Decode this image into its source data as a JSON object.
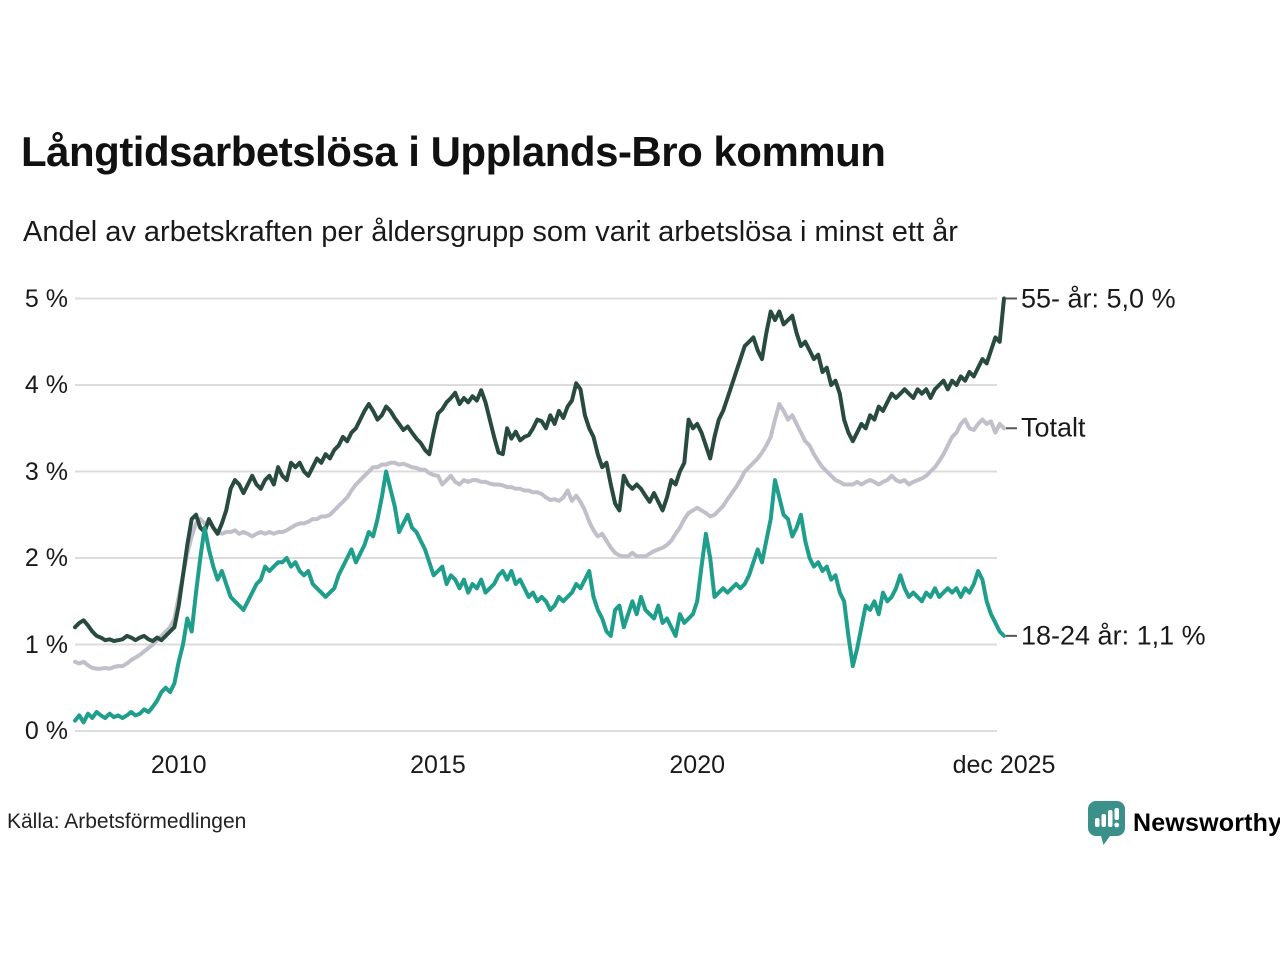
{
  "header": {
    "title": "Långtidsarbetslösa i Upplands-Bro kommun",
    "subtitle": "Andel av arbetskraften per åldersgrupp som varit arbetslösa i minst ett år"
  },
  "footer": {
    "source": "Källa: Arbetsförmedlingen",
    "brand": {
      "name": "Newsworthy",
      "icon": "newsworthy-bar-chart-pin-icon",
      "color": "#3b918a"
    }
  },
  "chart_data": {
    "type": "line",
    "frequency": "monthly",
    "x_start": "2008-01",
    "x_end": "2025-12",
    "grid": true,
    "legend_position": "right-end-labels",
    "y_axis": {
      "unit": "%",
      "min": 0,
      "max": 5,
      "ticks": [
        {
          "label": "0 %",
          "value": 0
        },
        {
          "label": "1 %",
          "value": 1
        },
        {
          "label": "2 %",
          "value": 2
        },
        {
          "label": "3 %",
          "value": 3
        },
        {
          "label": "4 %",
          "value": 4
        },
        {
          "label": "5 %",
          "value": 5
        }
      ]
    },
    "x_axis": {
      "ticks": [
        {
          "label": "2010",
          "month_index": 24
        },
        {
          "label": "2015",
          "month_index": 84
        },
        {
          "label": "2020",
          "month_index": 144
        },
        {
          "label": "dec 2025",
          "month_index": 215
        }
      ]
    },
    "series": [
      {
        "id": "totalt",
        "name": "Totalt",
        "end_label": "Totalt",
        "color": "#c1bfca",
        "last_value": 3.5,
        "values": [
          0.8,
          0.78,
          0.8,
          0.76,
          0.73,
          0.72,
          0.72,
          0.73,
          0.72,
          0.74,
          0.75,
          0.75,
          0.78,
          0.82,
          0.85,
          0.88,
          0.92,
          0.96,
          1.0,
          1.05,
          1.1,
          1.15,
          1.2,
          1.3,
          1.55,
          1.8,
          2.05,
          2.25,
          2.4,
          2.45,
          2.4,
          2.42,
          2.35,
          2.3,
          2.28,
          2.3,
          2.3,
          2.32,
          2.28,
          2.3,
          2.28,
          2.25,
          2.28,
          2.3,
          2.28,
          2.3,
          2.28,
          2.3,
          2.3,
          2.32,
          2.35,
          2.38,
          2.4,
          2.4,
          2.42,
          2.45,
          2.45,
          2.48,
          2.48,
          2.5,
          2.55,
          2.6,
          2.65,
          2.7,
          2.78,
          2.85,
          2.9,
          2.95,
          3.0,
          3.05,
          3.05,
          3.08,
          3.08,
          3.1,
          3.1,
          3.08,
          3.09,
          3.07,
          3.05,
          3.04,
          3.02,
          3.02,
          2.98,
          2.96,
          2.95,
          2.85,
          2.9,
          2.95,
          2.88,
          2.85,
          2.9,
          2.88,
          2.9,
          2.9,
          2.88,
          2.88,
          2.86,
          2.85,
          2.85,
          2.84,
          2.82,
          2.82,
          2.8,
          2.8,
          2.78,
          2.78,
          2.76,
          2.76,
          2.74,
          2.7,
          2.67,
          2.68,
          2.66,
          2.7,
          2.78,
          2.66,
          2.72,
          2.65,
          2.55,
          2.42,
          2.32,
          2.25,
          2.28,
          2.2,
          2.12,
          2.06,
          2.03,
          2.02,
          2.02,
          2.06,
          2.02,
          2.02,
          2.02,
          2.05,
          2.08,
          2.1,
          2.12,
          2.15,
          2.2,
          2.28,
          2.35,
          2.45,
          2.52,
          2.55,
          2.58,
          2.55,
          2.52,
          2.48,
          2.5,
          2.55,
          2.6,
          2.68,
          2.75,
          2.82,
          2.9,
          3.0,
          3.05,
          3.1,
          3.15,
          3.22,
          3.3,
          3.4,
          3.6,
          3.78,
          3.7,
          3.6,
          3.65,
          3.55,
          3.45,
          3.35,
          3.3,
          3.2,
          3.12,
          3.05,
          3.0,
          2.95,
          2.9,
          2.88,
          2.85,
          2.85,
          2.85,
          2.88,
          2.85,
          2.88,
          2.9,
          2.88,
          2.85,
          2.88,
          2.9,
          2.95,
          2.9,
          2.88,
          2.9,
          2.85,
          2.88,
          2.9,
          2.92,
          2.95,
          3.0,
          3.05,
          3.12,
          3.2,
          3.3,
          3.4,
          3.45,
          3.55,
          3.6,
          3.5,
          3.48,
          3.55,
          3.6,
          3.55,
          3.58,
          3.45,
          3.55,
          3.5
        ]
      },
      {
        "id": "55-plus",
        "name": "55- år",
        "end_label": "55- år: 5,0 %",
        "color": "#294b3f",
        "last_value": 5.0,
        "values": [
          1.2,
          1.25,
          1.28,
          1.22,
          1.15,
          1.1,
          1.08,
          1.05,
          1.06,
          1.04,
          1.05,
          1.06,
          1.1,
          1.08,
          1.05,
          1.08,
          1.1,
          1.06,
          1.04,
          1.08,
          1.05,
          1.1,
          1.15,
          1.2,
          1.45,
          1.8,
          2.15,
          2.45,
          2.5,
          2.35,
          2.3,
          2.45,
          2.35,
          2.28,
          2.4,
          2.55,
          2.8,
          2.9,
          2.85,
          2.75,
          2.85,
          2.95,
          2.85,
          2.8,
          2.9,
          2.95,
          2.85,
          3.05,
          2.95,
          2.9,
          3.1,
          3.05,
          3.1,
          3.0,
          2.95,
          3.05,
          3.15,
          3.1,
          3.2,
          3.15,
          3.25,
          3.3,
          3.4,
          3.35,
          3.45,
          3.5,
          3.6,
          3.7,
          3.78,
          3.7,
          3.6,
          3.65,
          3.75,
          3.7,
          3.62,
          3.55,
          3.48,
          3.52,
          3.45,
          3.38,
          3.33,
          3.25,
          3.2,
          3.45,
          3.67,
          3.72,
          3.8,
          3.85,
          3.91,
          3.78,
          3.85,
          3.8,
          3.87,
          3.82,
          3.94,
          3.8,
          3.6,
          3.4,
          3.22,
          3.2,
          3.5,
          3.38,
          3.46,
          3.36,
          3.4,
          3.42,
          3.5,
          3.6,
          3.58,
          3.5,
          3.65,
          3.55,
          3.7,
          3.62,
          3.75,
          3.82,
          4.02,
          3.95,
          3.65,
          3.5,
          3.4,
          3.2,
          3.05,
          3.1,
          2.85,
          2.63,
          2.55,
          2.95,
          2.85,
          2.8,
          2.85,
          2.8,
          2.72,
          2.65,
          2.75,
          2.65,
          2.55,
          2.7,
          2.9,
          2.85,
          3.0,
          3.1,
          3.6,
          3.5,
          3.55,
          3.45,
          3.3,
          3.15,
          3.4,
          3.6,
          3.7,
          3.85,
          4.0,
          4.15,
          4.3,
          4.45,
          4.5,
          4.55,
          4.4,
          4.3,
          4.6,
          4.85,
          4.75,
          4.85,
          4.7,
          4.75,
          4.8,
          4.6,
          4.45,
          4.5,
          4.4,
          4.3,
          4.35,
          4.15,
          4.2,
          4.0,
          4.05,
          3.9,
          3.6,
          3.45,
          3.35,
          3.45,
          3.55,
          3.5,
          3.65,
          3.6,
          3.75,
          3.7,
          3.8,
          3.9,
          3.85,
          3.9,
          3.95,
          3.9,
          3.85,
          3.95,
          3.9,
          3.95,
          3.85,
          3.95,
          4.0,
          4.05,
          3.95,
          4.05,
          4.0,
          4.1,
          4.05,
          4.15,
          4.1,
          4.2,
          4.3,
          4.25,
          4.4,
          4.55,
          4.5,
          5.0
        ]
      },
      {
        "id": "18-24",
        "name": "18-24 år",
        "end_label": "18-24 år: 1,1 %",
        "color": "#1e9e8b",
        "last_value": 1.1,
        "values": [
          0.12,
          0.18,
          0.1,
          0.2,
          0.15,
          0.22,
          0.18,
          0.15,
          0.2,
          0.16,
          0.18,
          0.15,
          0.18,
          0.22,
          0.18,
          0.2,
          0.25,
          0.22,
          0.28,
          0.35,
          0.45,
          0.5,
          0.45,
          0.55,
          0.8,
          1.0,
          1.3,
          1.15,
          1.6,
          2.0,
          2.35,
          2.1,
          1.9,
          1.75,
          1.85,
          1.7,
          1.55,
          1.5,
          1.45,
          1.4,
          1.5,
          1.6,
          1.7,
          1.75,
          1.9,
          1.85,
          1.9,
          1.95,
          1.95,
          2.0,
          1.9,
          1.95,
          1.85,
          1.8,
          1.85,
          1.7,
          1.65,
          1.6,
          1.55,
          1.6,
          1.65,
          1.8,
          1.9,
          2.0,
          2.1,
          1.95,
          2.05,
          2.15,
          2.3,
          2.25,
          2.45,
          2.7,
          3.0,
          2.8,
          2.6,
          2.3,
          2.4,
          2.5,
          2.35,
          2.3,
          2.2,
          2.1,
          1.95,
          1.8,
          1.85,
          1.9,
          1.7,
          1.8,
          1.75,
          1.65,
          1.75,
          1.6,
          1.7,
          1.65,
          1.75,
          1.6,
          1.65,
          1.7,
          1.8,
          1.85,
          1.75,
          1.85,
          1.7,
          1.75,
          1.65,
          1.55,
          1.6,
          1.5,
          1.55,
          1.5,
          1.4,
          1.45,
          1.55,
          1.5,
          1.55,
          1.6,
          1.7,
          1.65,
          1.75,
          1.85,
          1.55,
          1.4,
          1.3,
          1.15,
          1.1,
          1.4,
          1.45,
          1.2,
          1.35,
          1.5,
          1.35,
          1.55,
          1.4,
          1.35,
          1.3,
          1.45,
          1.25,
          1.3,
          1.2,
          1.1,
          1.35,
          1.25,
          1.3,
          1.35,
          1.5,
          1.9,
          2.28,
          2.0,
          1.55,
          1.6,
          1.65,
          1.6,
          1.65,
          1.7,
          1.65,
          1.7,
          1.8,
          1.95,
          2.1,
          1.95,
          2.2,
          2.45,
          2.9,
          2.7,
          2.5,
          2.45,
          2.25,
          2.35,
          2.5,
          2.2,
          2.0,
          1.9,
          1.95,
          1.85,
          1.9,
          1.75,
          1.8,
          1.6,
          1.5,
          1.1,
          0.75,
          0.95,
          1.2,
          1.45,
          1.4,
          1.5,
          1.35,
          1.6,
          1.5,
          1.55,
          1.65,
          1.8,
          1.65,
          1.55,
          1.6,
          1.55,
          1.5,
          1.6,
          1.55,
          1.65,
          1.55,
          1.6,
          1.65,
          1.6,
          1.65,
          1.55,
          1.65,
          1.6,
          1.7,
          1.85,
          1.75,
          1.5,
          1.35,
          1.25,
          1.15,
          1.1
        ]
      }
    ]
  }
}
